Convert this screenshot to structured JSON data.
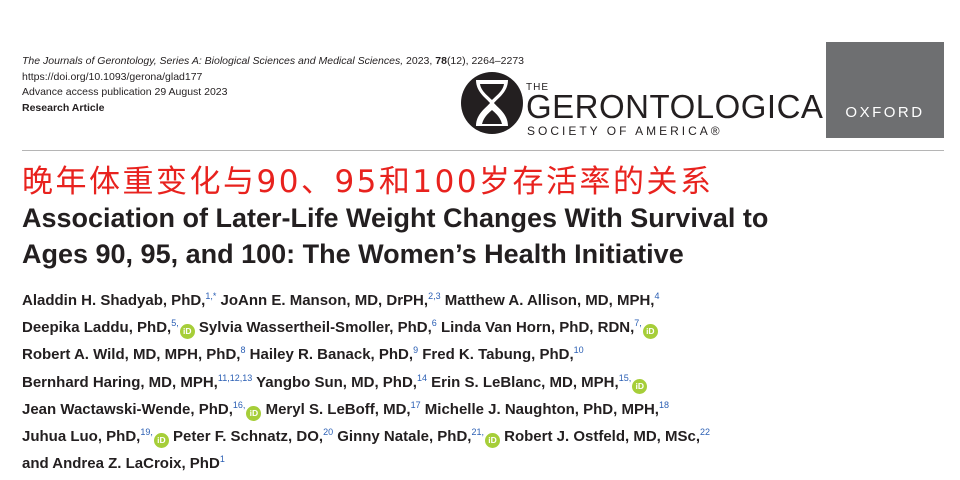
{
  "header": {
    "journal_name": "The Journals of Gerontology, Series A: Biological Sciences and Medical Sciences,",
    "journal_year": " 2023, ",
    "journal_volume": "78",
    "journal_issue_pages": "(12), 2264–2273",
    "doi": "https://doi.org/10.1093/gerona/glad177",
    "access": "Advance access publication 29 August 2023",
    "article_type": "Research Article"
  },
  "logos": {
    "gsa_the": "THE",
    "gsa_name": "GERONTOLOGICAL",
    "gsa_sub": "SOCIETY OF AMERICA®",
    "oxford": "OXFORD"
  },
  "title": {
    "chinese": "晚年体重变化与90、95和100岁存活率的关系",
    "english_line1": "Association of Later-Life Weight Changes With Survival to",
    "english_line2": "Ages 90, 95, and 100: The Women’s Health Initiative"
  },
  "orcid_label": "iD",
  "authors": [
    [
      {
        "name": "Aladdin H. Shadyab, PhD,",
        "sup": "1,*",
        "orcid": false
      },
      {
        "name": " JoAnn E. Manson, MD, DrPH,",
        "sup": "2,3",
        "orcid": false
      },
      {
        "name": " Matthew A. Allison, MD, MPH,",
        "sup": "4",
        "orcid": false
      }
    ],
    [
      {
        "name": "Deepika Laddu, PhD,",
        "sup": "5,",
        "orcid": true
      },
      {
        "name": " Sylvia Wassertheil-Smoller, PhD,",
        "sup": "6",
        "orcid": false
      },
      {
        "name": " Linda Van Horn, PhD, RDN,",
        "sup": "7,",
        "orcid": true
      }
    ],
    [
      {
        "name": "Robert A. Wild, MD, MPH, PhD,",
        "sup": "8",
        "orcid": false
      },
      {
        "name": " Hailey R. Banack, PhD,",
        "sup": "9",
        "orcid": false
      },
      {
        "name": " Fred K. Tabung, PhD,",
        "sup": "10",
        "orcid": false
      }
    ],
    [
      {
        "name": "Bernhard Haring, MD, MPH,",
        "sup": "11,12,13",
        "orcid": false
      },
      {
        "name": " Yangbo Sun, MD, PhD,",
        "sup": "14",
        "orcid": false
      },
      {
        "name": " Erin S. LeBlanc, MD, MPH,",
        "sup": "15,",
        "orcid": true
      }
    ],
    [
      {
        "name": "Jean Wactawski-Wende, PhD,",
        "sup": "16,",
        "orcid": true
      },
      {
        "name": " Meryl S. LeBoff, MD,",
        "sup": "17",
        "orcid": false
      },
      {
        "name": " Michelle J. Naughton, PhD, MPH,",
        "sup": "18",
        "orcid": false
      }
    ],
    [
      {
        "name": "Juhua Luo, PhD,",
        "sup": "19,",
        "orcid": true
      },
      {
        "name": " Peter F. Schnatz, DO,",
        "sup": "20",
        "orcid": false
      },
      {
        "name": " Ginny Natale, PhD,",
        "sup": "21,",
        "orcid": true
      },
      {
        "name": " Robert J. Ostfeld, MD, MSc,",
        "sup": "22",
        "orcid": false
      }
    ],
    [
      {
        "name": "and Andrea Z. LaCroix, PhD",
        "sup": "1",
        "orcid": false
      }
    ]
  ]
}
